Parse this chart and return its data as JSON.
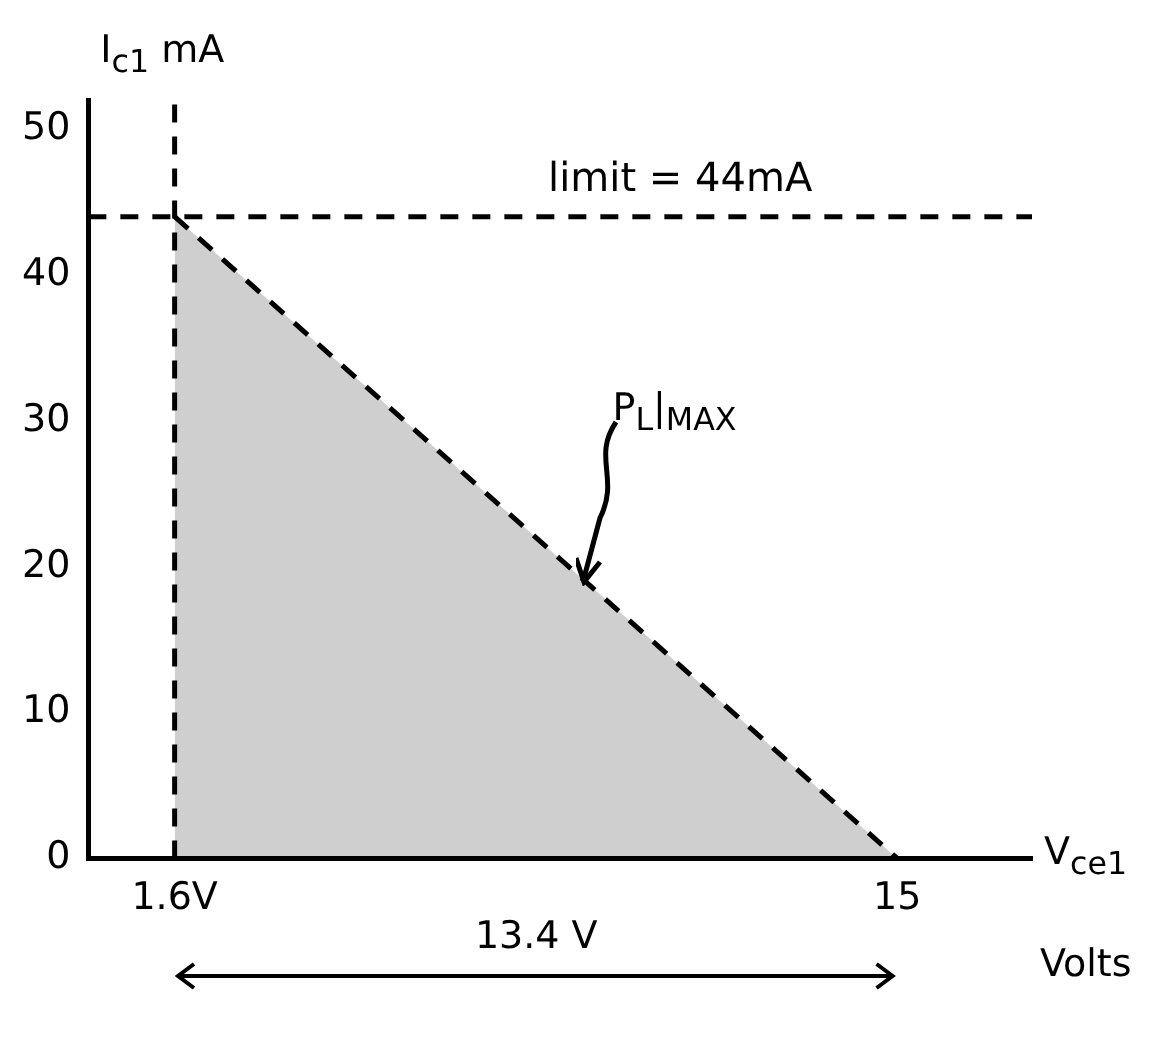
{
  "chart_data": {
    "type": "area",
    "xlabel": "V$_{ce1}$",
    "ylabel": "I$_{c1}$ mA",
    "x": [
      1.6,
      15
    ],
    "series": [
      {
        "color": "#000000",
        "values": [
          44,
          0
        ]
      }
    ],
    "xlim": [
      0,
      17.5
    ],
    "ylim": [
      0,
      52
    ],
    "xticks": [
      {
        "value": 1.6,
        "label": "1.6V"
      },
      15
    ],
    "yticks": [
      0,
      10,
      20,
      30,
      40,
      50
    ],
    "ref_lines": [
      {
        "axis": "y",
        "value": 44,
        "label": "limit = 44mA",
        "line_style": "dashed"
      },
      {
        "axis": "x",
        "value": 1.6,
        "line_style": "dashed"
      }
    ],
    "annotations": [
      {
        "text": "P$_{L}$|$_{MAX}$",
        "x": 9.2,
        "y": 19
      },
      "13.4 V",
      "Volts"
    ],
    "marker": "none",
    "line_style": "dashed"
  }
}
